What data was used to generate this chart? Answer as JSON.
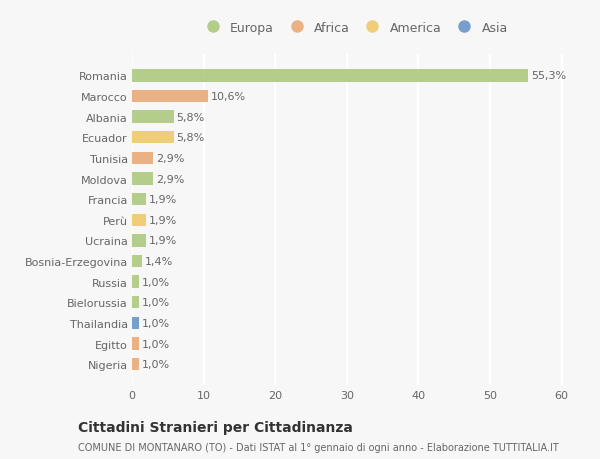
{
  "countries": [
    "Romania",
    "Marocco",
    "Albania",
    "Ecuador",
    "Tunisia",
    "Moldova",
    "Francia",
    "Perù",
    "Ucraina",
    "Bosnia-Erzegovina",
    "Russia",
    "Bielorussia",
    "Thailandia",
    "Egitto",
    "Nigeria"
  ],
  "values": [
    55.3,
    10.6,
    5.8,
    5.8,
    2.9,
    2.9,
    1.9,
    1.9,
    1.9,
    1.4,
    1.0,
    1.0,
    1.0,
    1.0,
    1.0
  ],
  "labels": [
    "55,3%",
    "10,6%",
    "5,8%",
    "5,8%",
    "2,9%",
    "2,9%",
    "1,9%",
    "1,9%",
    "1,9%",
    "1,4%",
    "1,0%",
    "1,0%",
    "1,0%",
    "1,0%",
    "1,0%"
  ],
  "continents": [
    "Europa",
    "Africa",
    "Europa",
    "America",
    "Africa",
    "Europa",
    "Europa",
    "America",
    "Europa",
    "Europa",
    "Europa",
    "Europa",
    "Asia",
    "Africa",
    "Africa"
  ],
  "continent_colors": {
    "Europa": "#adc97e",
    "Africa": "#e8aa78",
    "America": "#f0ca6a",
    "Asia": "#6896c8"
  },
  "legend_order": [
    "Europa",
    "Africa",
    "America",
    "Asia"
  ],
  "title": "Cittadini Stranieri per Cittadinanza",
  "subtitle": "COMUNE DI MONTANARO (TO) - Dati ISTAT al 1° gennaio di ogni anno - Elaborazione TUTTITALIA.IT",
  "xlim": [
    0,
    62
  ],
  "xticks": [
    0,
    10,
    20,
    30,
    40,
    50,
    60
  ],
  "bg_color": "#f7f7f7",
  "bar_height": 0.6,
  "label_fontsize": 8,
  "tick_fontsize": 8,
  "label_color": "#666666",
  "title_fontsize": 10,
  "subtitle_fontsize": 7
}
